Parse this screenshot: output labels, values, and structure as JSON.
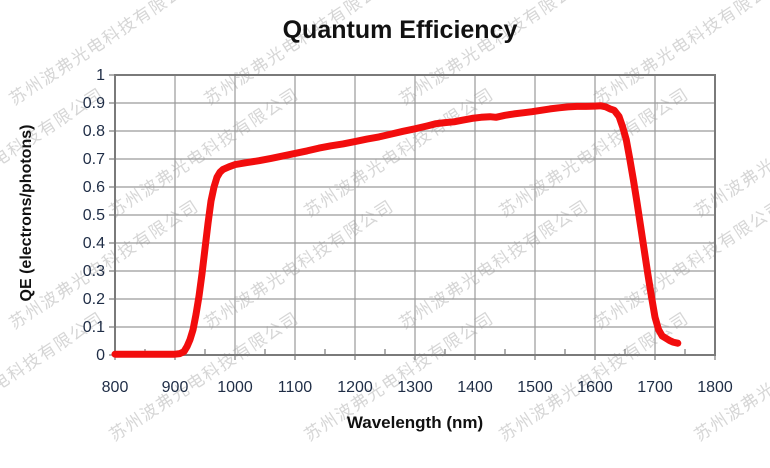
{
  "watermark": {
    "text": "苏州波弗光电科技有限公司",
    "color": "#c7c7c7",
    "opacity": 0.72
  },
  "chart": {
    "title": "Quantum Efficiency",
    "x_axis_title": "Wavelength (nm)",
    "y_axis_title": "QE (electrons/photons)"
  },
  "colors": {
    "curve": "#f20d0d",
    "grid": "#9a9a9a",
    "plot_border": "#7a7a7a",
    "tick_mark": "#7a7a7a",
    "tick_label": "#1f2d46",
    "title_text": "#111111"
  },
  "chart_data": {
    "type": "line",
    "title": "Quantum Efficiency",
    "xlabel": "Wavelength (nm)",
    "ylabel": "QE (electrons/photons)",
    "xlim": [
      800,
      1800
    ],
    "ylim": [
      0,
      1
    ],
    "x_ticks": [
      800,
      900,
      1000,
      1100,
      1200,
      1300,
      1400,
      1500,
      1600,
      1700,
      1800
    ],
    "x_minor_tick_step": 50,
    "y_ticks": [
      1,
      0.9,
      0.8,
      0.7,
      0.6,
      0.5,
      0.4,
      0.3,
      0.2,
      0.1,
      0
    ],
    "grid": true,
    "legend": false,
    "series": [
      {
        "name": "QE",
        "color": "#f20d0d",
        "line_width": 7,
        "points": [
          [
            800,
            0.003
          ],
          [
            820,
            0.003
          ],
          [
            840,
            0.003
          ],
          [
            860,
            0.003
          ],
          [
            880,
            0.003
          ],
          [
            900,
            0.003
          ],
          [
            908,
            0.005
          ],
          [
            915,
            0.012
          ],
          [
            920,
            0.03
          ],
          [
            925,
            0.055
          ],
          [
            930,
            0.09
          ],
          [
            935,
            0.145
          ],
          [
            940,
            0.21
          ],
          [
            945,
            0.29
          ],
          [
            950,
            0.38
          ],
          [
            955,
            0.47
          ],
          [
            960,
            0.55
          ],
          [
            965,
            0.6
          ],
          [
            970,
            0.635
          ],
          [
            975,
            0.653
          ],
          [
            980,
            0.663
          ],
          [
            990,
            0.672
          ],
          [
            1000,
            0.68
          ],
          [
            1020,
            0.687
          ],
          [
            1040,
            0.694
          ],
          [
            1060,
            0.702
          ],
          [
            1080,
            0.711
          ],
          [
            1100,
            0.72
          ],
          [
            1120,
            0.729
          ],
          [
            1140,
            0.739
          ],
          [
            1160,
            0.747
          ],
          [
            1180,
            0.754
          ],
          [
            1200,
            0.762
          ],
          [
            1220,
            0.771
          ],
          [
            1240,
            0.779
          ],
          [
            1260,
            0.789
          ],
          [
            1280,
            0.799
          ],
          [
            1300,
            0.808
          ],
          [
            1310,
            0.813
          ],
          [
            1320,
            0.818
          ],
          [
            1335,
            0.826
          ],
          [
            1350,
            0.83
          ],
          [
            1365,
            0.833
          ],
          [
            1380,
            0.839
          ],
          [
            1395,
            0.845
          ],
          [
            1410,
            0.849
          ],
          [
            1425,
            0.851
          ],
          [
            1435,
            0.849
          ],
          [
            1450,
            0.856
          ],
          [
            1465,
            0.861
          ],
          [
            1480,
            0.865
          ],
          [
            1495,
            0.869
          ],
          [
            1510,
            0.874
          ],
          [
            1525,
            0.879
          ],
          [
            1540,
            0.883
          ],
          [
            1555,
            0.886
          ],
          [
            1570,
            0.888
          ],
          [
            1585,
            0.888
          ],
          [
            1600,
            0.889
          ],
          [
            1610,
            0.89
          ],
          [
            1618,
            0.886
          ],
          [
            1625,
            0.879
          ],
          [
            1632,
            0.874
          ],
          [
            1640,
            0.852
          ],
          [
            1646,
            0.815
          ],
          [
            1652,
            0.77
          ],
          [
            1658,
            0.7
          ],
          [
            1664,
            0.625
          ],
          [
            1670,
            0.545
          ],
          [
            1676,
            0.46
          ],
          [
            1682,
            0.375
          ],
          [
            1688,
            0.29
          ],
          [
            1694,
            0.21
          ],
          [
            1700,
            0.135
          ],
          [
            1706,
            0.09
          ],
          [
            1712,
            0.068
          ],
          [
            1718,
            0.06
          ],
          [
            1724,
            0.052
          ],
          [
            1730,
            0.046
          ],
          [
            1738,
            0.042
          ]
        ]
      }
    ]
  }
}
